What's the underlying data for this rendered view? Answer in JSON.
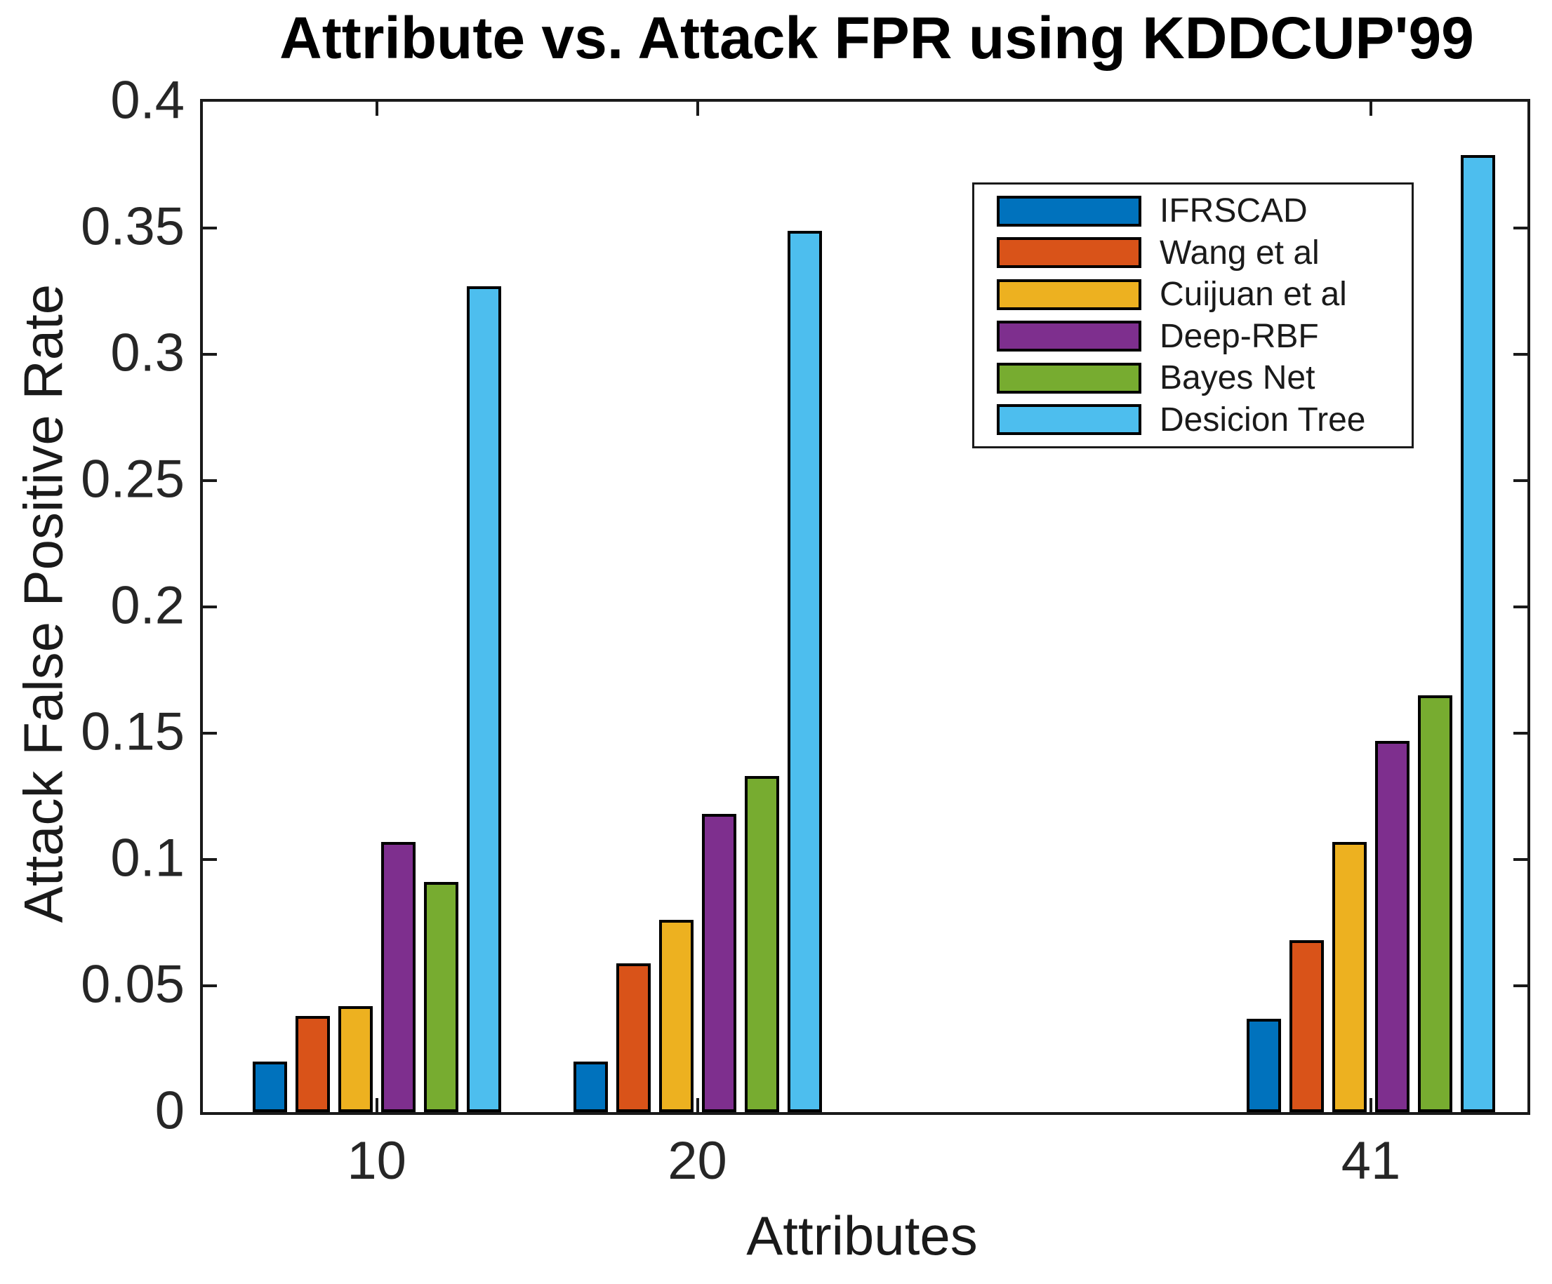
{
  "title": "Attribute vs. Attack FPR using KDDCUP'99",
  "chart_data": {
    "type": "bar",
    "title": "Attribute vs. Attack FPR using KDDCUP'99",
    "xlabel": "Attributes",
    "ylabel": "Attack False Positive Rate",
    "categories": [
      10,
      20,
      41
    ],
    "xtick_labels": [
      "10",
      "20",
      "41"
    ],
    "series": [
      {
        "name": "IFRSCAD",
        "color": "#0072BD",
        "values": [
          0.02,
          0.02,
          0.037
        ]
      },
      {
        "name": "Wang et al",
        "color": "#D95319",
        "values": [
          0.038,
          0.059,
          0.068
        ]
      },
      {
        "name": "Cuijuan et al",
        "color": "#EDB120",
        "values": [
          0.042,
          0.076,
          0.107
        ]
      },
      {
        "name": "Deep-RBF",
        "color": "#7E2F8E",
        "values": [
          0.107,
          0.118,
          0.147
        ]
      },
      {
        "name": "Bayes Net",
        "color": "#77AC30",
        "values": [
          0.091,
          0.133,
          0.165
        ]
      },
      {
        "name": "Desicion Tree",
        "color": "#4DBEEE",
        "values": [
          0.327,
          0.349,
          0.379
        ]
      }
    ],
    "ylim": [
      0,
      0.4
    ],
    "xlim": [
      4.58,
      45.88
    ],
    "yticks": [
      0,
      0.05,
      0.1,
      0.15,
      0.2,
      0.25,
      0.3,
      0.35,
      0.4
    ],
    "ytick_labels": [
      "0",
      "0.05",
      "0.1",
      "0.15",
      "0.2",
      "0.25",
      "0.3",
      "0.35",
      "0.4"
    ],
    "grid": false,
    "legend_position": "upper-right-inside",
    "bar_edge_color": "#000000",
    "frame_color": "#1a1a1a"
  }
}
